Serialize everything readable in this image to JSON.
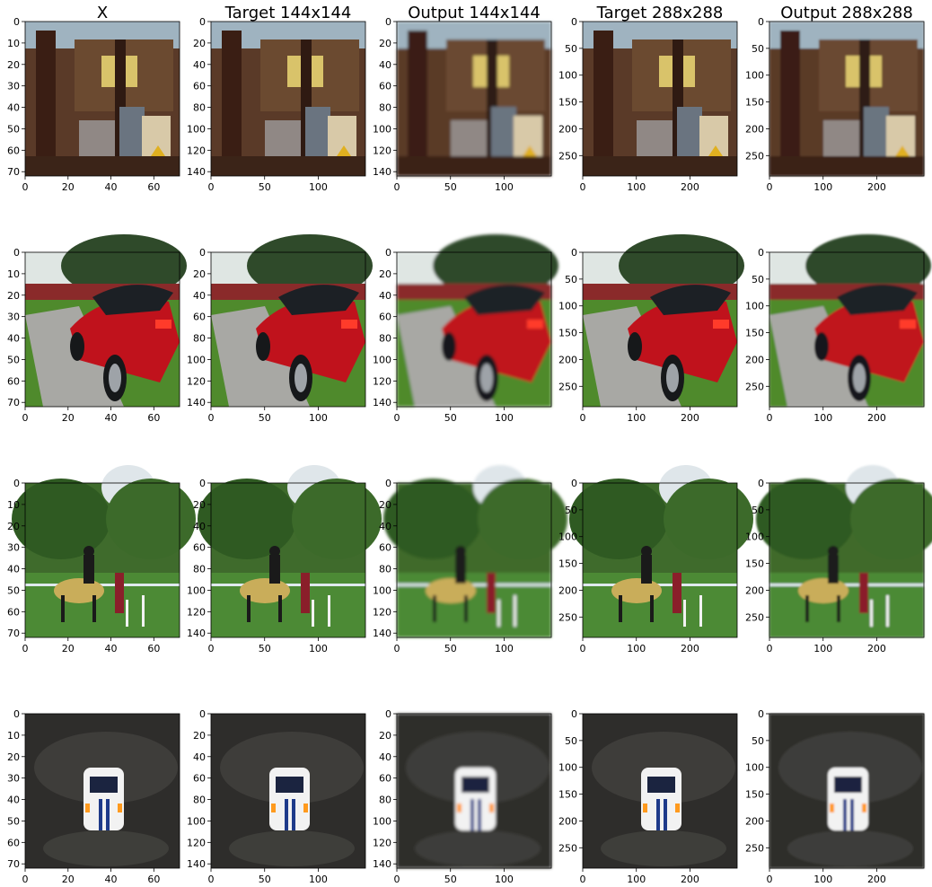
{
  "columns": [
    {
      "title": "X",
      "xticks": [
        "0",
        "20",
        "40",
        "60"
      ],
      "yticks": [
        "0",
        "10",
        "20",
        "30",
        "40",
        "50",
        "60",
        "70"
      ]
    },
    {
      "title": "Target 144x144",
      "xticks": [
        "0",
        "50",
        "100"
      ],
      "yticks": [
        "0",
        "20",
        "40",
        "60",
        "80",
        "100",
        "120",
        "140"
      ]
    },
    {
      "title": "Output 144x144",
      "xticks": [
        "0",
        "50",
        "100"
      ],
      "yticks": [
        "0",
        "20",
        "40",
        "60",
        "80",
        "100",
        "120",
        "140"
      ]
    },
    {
      "title": "Target 288x288",
      "xticks": [
        "0",
        "100",
        "200"
      ],
      "yticks": [
        "0",
        "50",
        "100",
        "150",
        "200",
        "250"
      ]
    },
    {
      "title": "Output 288x288",
      "xticks": [
        "0",
        "100",
        "200"
      ],
      "yticks": [
        "0",
        "50",
        "100",
        "150",
        "200",
        "250"
      ]
    }
  ],
  "rows": [
    {
      "scene": "cluttered-dining-room",
      "colors": {
        "bg": "#5a3a28",
        "top": "#9fb3c0",
        "accent": "#d9c36a",
        "floor": "#3b2418"
      }
    },
    {
      "scene": "red-convertible-driveway",
      "colors": {
        "bg": "#6f7a6c",
        "top": "#2f4a2a",
        "accent": "#c0121c",
        "floor": "#4f8a2c"
      }
    },
    {
      "scene": "horse-riders-on-lawn",
      "colors": {
        "bg": "#3f6b2c",
        "top": "#dfe6ea",
        "accent": "#c9ad5a",
        "floor": "#4c8a35"
      }
    },
    {
      "scene": "rally-car-dirt-track",
      "colors": {
        "bg": "#2e2d2b",
        "top": "#4a4844",
        "accent": "#f2f2f2",
        "floor": "#1f1e1c"
      }
    }
  ]
}
